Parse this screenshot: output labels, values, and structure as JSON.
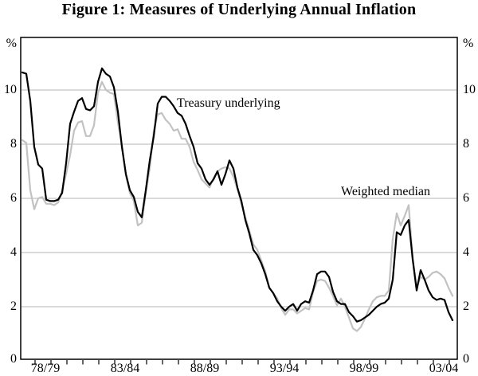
{
  "title": "Figure 1: Measures of Underlying Annual Inflation",
  "axis": {
    "percent_left": "%",
    "percent_right": "%",
    "y_tick_labels": [
      "0",
      "2",
      "4",
      "6",
      "8",
      "10"
    ],
    "x_tick_labels": [
      "78/79",
      "83/84",
      "88/89",
      "93/94",
      "98/99",
      "03/04"
    ]
  },
  "series_labels": {
    "treasury": "Treasury underlying",
    "median": "Weighted median"
  },
  "chart_data": {
    "type": "line",
    "title": "Figure 1: Measures of Underlying Annual Inflation",
    "ylabel": "%",
    "y_ticks": [
      0,
      2,
      4,
      6,
      8,
      10
    ],
    "ylim": [
      0,
      11.9
    ],
    "x_tick_labels": [
      "78/79",
      "83/84",
      "88/89",
      "93/94",
      "98/99",
      "03/04"
    ],
    "frequency": "quarterly",
    "minor_x_ticks": "yearly",
    "grid": "horizontal",
    "legend_position": "inline-annotations",
    "series": [
      {
        "name": "Weighted median",
        "color": "#c2c2c2",
        "values": [
          8.15,
          8.05,
          6.3,
          5.6,
          6.0,
          6.05,
          5.8,
          5.8,
          5.75,
          5.85,
          6.3,
          6.9,
          7.6,
          8.5,
          8.8,
          8.85,
          8.3,
          8.3,
          8.7,
          9.9,
          10.3,
          10.0,
          9.9,
          9.85,
          8.8,
          8.0,
          6.85,
          6.2,
          5.9,
          5.0,
          5.1,
          6.2,
          7.1,
          8.5,
          9.1,
          9.15,
          8.9,
          8.75,
          8.5,
          8.55,
          8.2,
          8.2,
          7.9,
          7.35,
          7.05,
          6.7,
          6.55,
          6.4,
          6.75,
          7.0,
          7.1,
          7.15,
          7.1,
          6.8,
          6.35,
          5.8,
          5.3,
          4.8,
          4.3,
          4.1,
          3.7,
          3.3,
          2.7,
          2.5,
          2.3,
          1.95,
          1.7,
          1.9,
          1.9,
          1.75,
          1.85,
          1.95,
          1.9,
          2.55,
          2.95,
          3.0,
          2.95,
          2.7,
          2.4,
          2.05,
          2.3,
          2.0,
          1.6,
          1.2,
          1.1,
          1.25,
          1.55,
          1.9,
          2.2,
          2.35,
          2.4,
          2.4,
          2.6,
          4.5,
          5.45,
          5.0,
          5.35,
          5.75,
          3.8,
          2.7,
          3.1,
          3.0,
          3.1,
          3.25,
          3.3,
          3.2,
          3.05,
          2.7,
          2.4
        ]
      },
      {
        "name": "Treasury underlying",
        "color": "#000000",
        "values": [
          10.65,
          10.6,
          9.6,
          7.9,
          7.25,
          7.1,
          5.95,
          5.9,
          5.9,
          5.95,
          6.2,
          7.3,
          8.75,
          9.2,
          9.6,
          9.7,
          9.3,
          9.25,
          9.4,
          10.3,
          10.8,
          10.6,
          10.5,
          10.1,
          9.2,
          7.9,
          6.9,
          6.3,
          6.05,
          5.5,
          5.3,
          6.3,
          7.4,
          8.3,
          9.5,
          9.75,
          9.75,
          9.6,
          9.4,
          9.15,
          9.05,
          8.75,
          8.3,
          7.9,
          7.3,
          7.1,
          6.7,
          6.5,
          6.7,
          7.0,
          6.5,
          6.9,
          7.4,
          7.1,
          6.4,
          5.9,
          5.2,
          4.7,
          4.1,
          3.9,
          3.6,
          3.2,
          2.7,
          2.5,
          2.2,
          2.0,
          1.85,
          2.0,
          2.1,
          1.85,
          2.1,
          2.2,
          2.15,
          2.6,
          3.2,
          3.3,
          3.3,
          3.1,
          2.55,
          2.2,
          2.1,
          2.1,
          1.8,
          1.65,
          1.45,
          1.5,
          1.6,
          1.7,
          1.85,
          2.0,
          2.1,
          2.15,
          2.3,
          3.0,
          4.75,
          4.65,
          5.0,
          5.2,
          3.75,
          2.6,
          3.35,
          3.0,
          2.6,
          2.35,
          2.25,
          2.3,
          2.25,
          1.8,
          1.5
        ]
      }
    ]
  }
}
